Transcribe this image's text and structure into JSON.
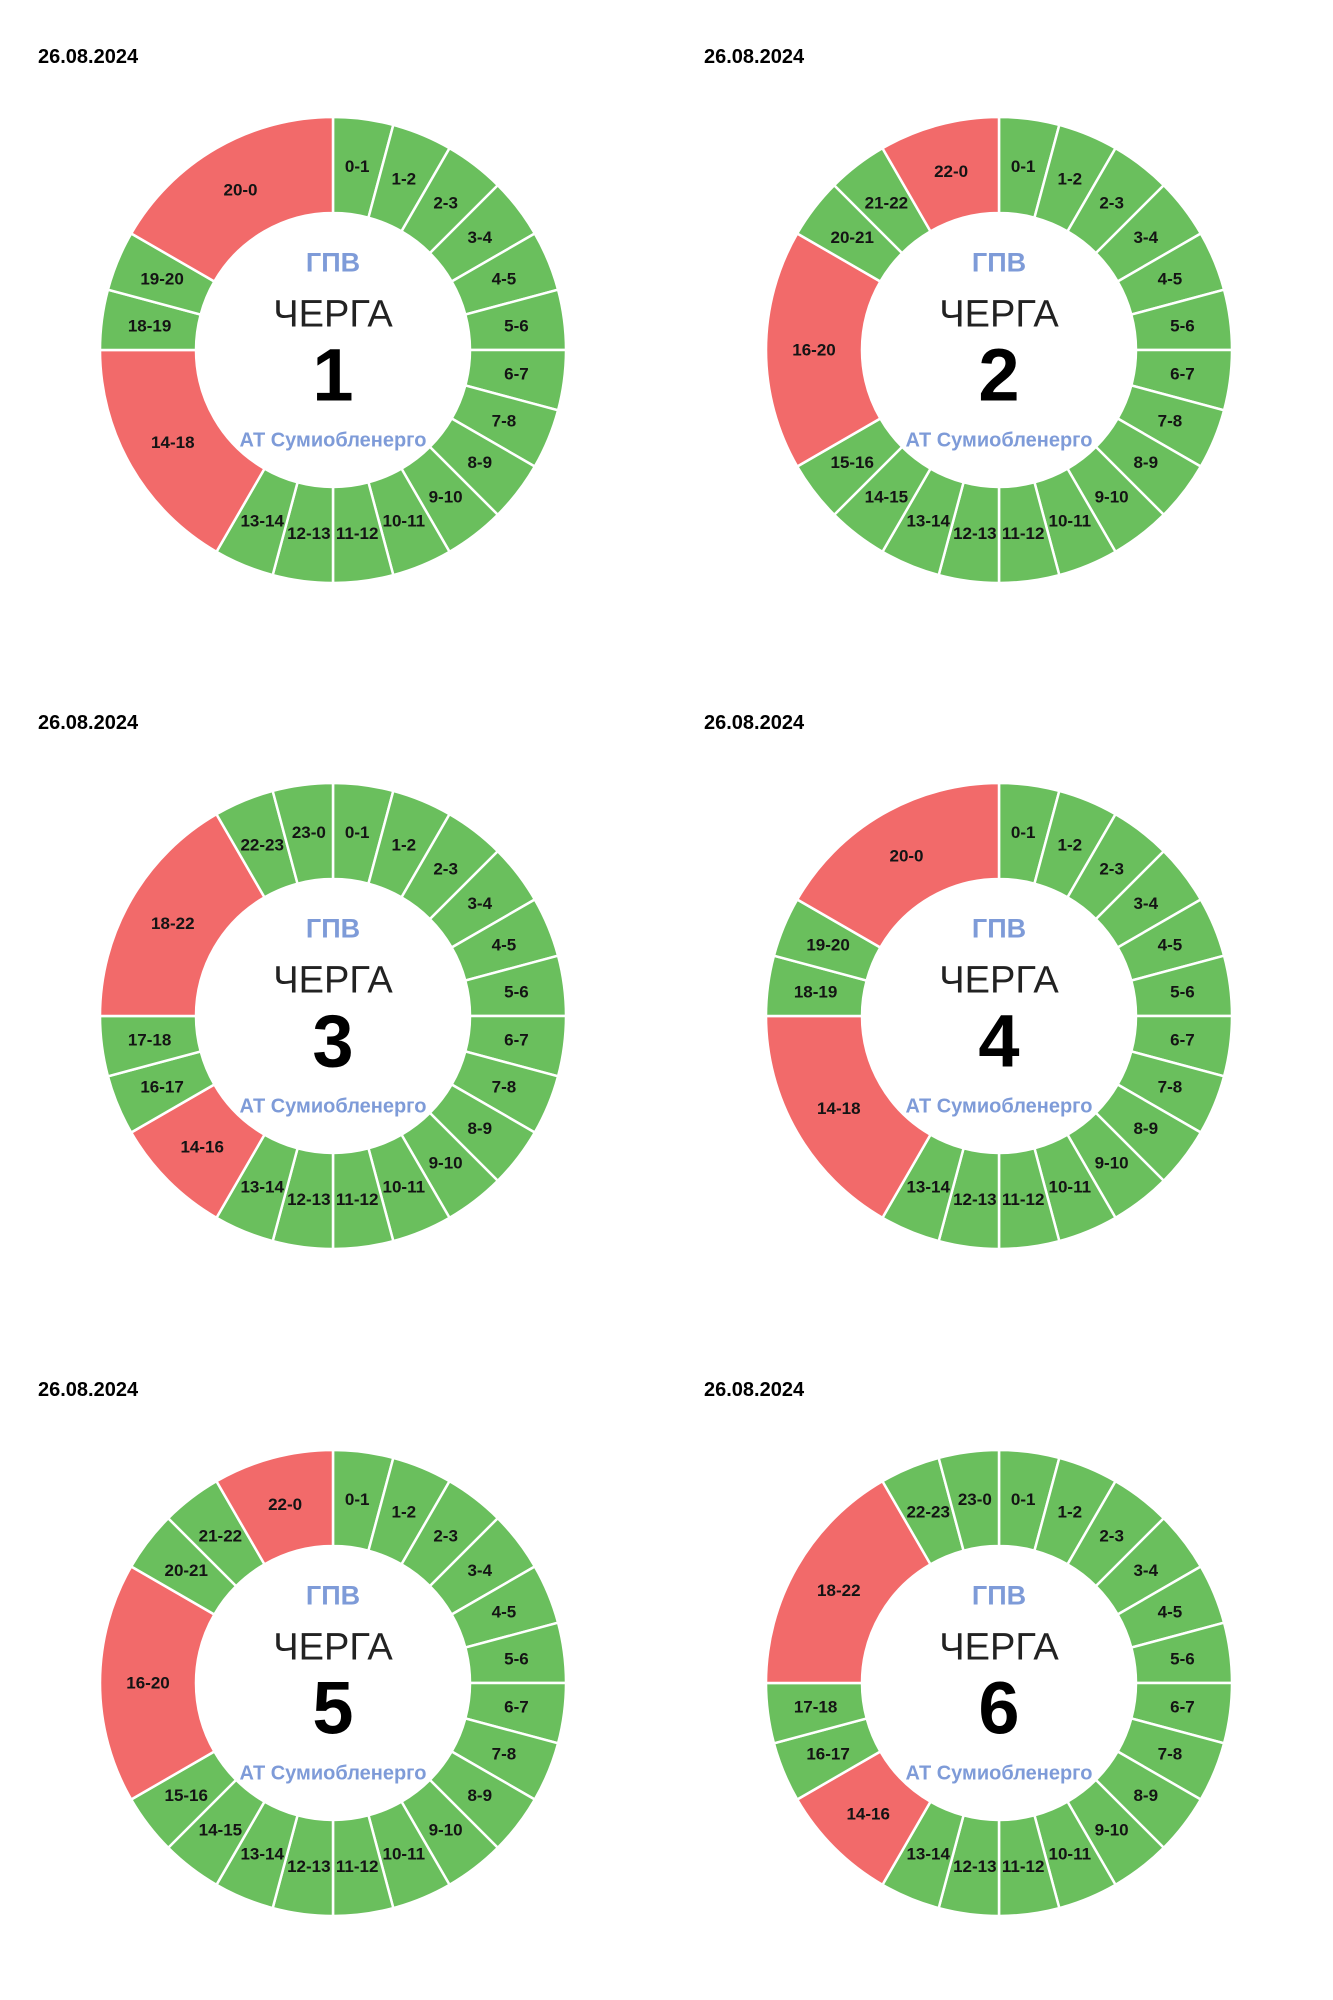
{
  "colors": {
    "on": "#6abf5d",
    "off": "#f26a6a",
    "stroke": "#ffffff",
    "segment_label": "#141414",
    "blue_text": "#7e9bd8"
  },
  "chart_data": [
    {
      "type": "pie",
      "date": "26.08.2024",
      "center": {
        "system": "ГПВ",
        "title": "ЧЕРГА",
        "number": "1",
        "company": "АТ Сумиобленерго"
      },
      "units": "hours of day, clockwise from midnight; on=green power available, off=red outage",
      "segments": [
        {
          "label": "0-1",
          "from": 0,
          "to": 1,
          "state": "on"
        },
        {
          "label": "1-2",
          "from": 1,
          "to": 2,
          "state": "on"
        },
        {
          "label": "2-3",
          "from": 2,
          "to": 3,
          "state": "on"
        },
        {
          "label": "3-4",
          "from": 3,
          "to": 4,
          "state": "on"
        },
        {
          "label": "4-5",
          "from": 4,
          "to": 5,
          "state": "on"
        },
        {
          "label": "5-6",
          "from": 5,
          "to": 6,
          "state": "on"
        },
        {
          "label": "6-7",
          "from": 6,
          "to": 7,
          "state": "on"
        },
        {
          "label": "7-8",
          "from": 7,
          "to": 8,
          "state": "on"
        },
        {
          "label": "8-9",
          "from": 8,
          "to": 9,
          "state": "on"
        },
        {
          "label": "9-10",
          "from": 9,
          "to": 10,
          "state": "on"
        },
        {
          "label": "10-11",
          "from": 10,
          "to": 11,
          "state": "on"
        },
        {
          "label": "11-12",
          "from": 11,
          "to": 12,
          "state": "on"
        },
        {
          "label": "12-13",
          "from": 12,
          "to": 13,
          "state": "on"
        },
        {
          "label": "13-14",
          "from": 13,
          "to": 14,
          "state": "on"
        },
        {
          "label": "14-18",
          "from": 14,
          "to": 18,
          "state": "off"
        },
        {
          "label": "18-19",
          "from": 18,
          "to": 19,
          "state": "on"
        },
        {
          "label": "19-20",
          "from": 19,
          "to": 20,
          "state": "on"
        },
        {
          "label": "20-0",
          "from": 20,
          "to": 24,
          "state": "off"
        }
      ]
    },
    {
      "type": "pie",
      "date": "26.08.2024",
      "center": {
        "system": "ГПВ",
        "title": "ЧЕРГА",
        "number": "2",
        "company": "АТ Сумиобленерго"
      },
      "units": "hours of day, clockwise from midnight; on=green power available, off=red outage",
      "segments": [
        {
          "label": "0-1",
          "from": 0,
          "to": 1,
          "state": "on"
        },
        {
          "label": "1-2",
          "from": 1,
          "to": 2,
          "state": "on"
        },
        {
          "label": "2-3",
          "from": 2,
          "to": 3,
          "state": "on"
        },
        {
          "label": "3-4",
          "from": 3,
          "to": 4,
          "state": "on"
        },
        {
          "label": "4-5",
          "from": 4,
          "to": 5,
          "state": "on"
        },
        {
          "label": "5-6",
          "from": 5,
          "to": 6,
          "state": "on"
        },
        {
          "label": "6-7",
          "from": 6,
          "to": 7,
          "state": "on"
        },
        {
          "label": "7-8",
          "from": 7,
          "to": 8,
          "state": "on"
        },
        {
          "label": "8-9",
          "from": 8,
          "to": 9,
          "state": "on"
        },
        {
          "label": "9-10",
          "from": 9,
          "to": 10,
          "state": "on"
        },
        {
          "label": "10-11",
          "from": 10,
          "to": 11,
          "state": "on"
        },
        {
          "label": "11-12",
          "from": 11,
          "to": 12,
          "state": "on"
        },
        {
          "label": "12-13",
          "from": 12,
          "to": 13,
          "state": "on"
        },
        {
          "label": "13-14",
          "from": 13,
          "to": 14,
          "state": "on"
        },
        {
          "label": "14-15",
          "from": 14,
          "to": 15,
          "state": "on"
        },
        {
          "label": "15-16",
          "from": 15,
          "to": 16,
          "state": "on"
        },
        {
          "label": "16-20",
          "from": 16,
          "to": 20,
          "state": "off"
        },
        {
          "label": "20-21",
          "from": 20,
          "to": 21,
          "state": "on"
        },
        {
          "label": "21-22",
          "from": 21,
          "to": 22,
          "state": "on"
        },
        {
          "label": "22-0",
          "from": 22,
          "to": 24,
          "state": "off"
        }
      ]
    },
    {
      "type": "pie",
      "date": "26.08.2024",
      "center": {
        "system": "ГПВ",
        "title": "ЧЕРГА",
        "number": "3",
        "company": "АТ Сумиобленерго"
      },
      "units": "hours of day, clockwise from midnight; on=green power available, off=red outage",
      "segments": [
        {
          "label": "0-1",
          "from": 0,
          "to": 1,
          "state": "on"
        },
        {
          "label": "1-2",
          "from": 1,
          "to": 2,
          "state": "on"
        },
        {
          "label": "2-3",
          "from": 2,
          "to": 3,
          "state": "on"
        },
        {
          "label": "3-4",
          "from": 3,
          "to": 4,
          "state": "on"
        },
        {
          "label": "4-5",
          "from": 4,
          "to": 5,
          "state": "on"
        },
        {
          "label": "5-6",
          "from": 5,
          "to": 6,
          "state": "on"
        },
        {
          "label": "6-7",
          "from": 6,
          "to": 7,
          "state": "on"
        },
        {
          "label": "7-8",
          "from": 7,
          "to": 8,
          "state": "on"
        },
        {
          "label": "8-9",
          "from": 8,
          "to": 9,
          "state": "on"
        },
        {
          "label": "9-10",
          "from": 9,
          "to": 10,
          "state": "on"
        },
        {
          "label": "10-11",
          "from": 10,
          "to": 11,
          "state": "on"
        },
        {
          "label": "11-12",
          "from": 11,
          "to": 12,
          "state": "on"
        },
        {
          "label": "12-13",
          "from": 12,
          "to": 13,
          "state": "on"
        },
        {
          "label": "13-14",
          "from": 13,
          "to": 14,
          "state": "on"
        },
        {
          "label": "14-16",
          "from": 14,
          "to": 16,
          "state": "off"
        },
        {
          "label": "16-17",
          "from": 16,
          "to": 17,
          "state": "on"
        },
        {
          "label": "17-18",
          "from": 17,
          "to": 18,
          "state": "on"
        },
        {
          "label": "18-22",
          "from": 18,
          "to": 22,
          "state": "off"
        },
        {
          "label": "22-23",
          "from": 22,
          "to": 23,
          "state": "on"
        },
        {
          "label": "23-0",
          "from": 23,
          "to": 24,
          "state": "on"
        }
      ]
    },
    {
      "type": "pie",
      "date": "26.08.2024",
      "center": {
        "system": "ГПВ",
        "title": "ЧЕРГА",
        "number": "4",
        "company": "АТ Сумиобленерго"
      },
      "units": "hours of day, clockwise from midnight; on=green power available, off=red outage",
      "segments": [
        {
          "label": "0-1",
          "from": 0,
          "to": 1,
          "state": "on"
        },
        {
          "label": "1-2",
          "from": 1,
          "to": 2,
          "state": "on"
        },
        {
          "label": "2-3",
          "from": 2,
          "to": 3,
          "state": "on"
        },
        {
          "label": "3-4",
          "from": 3,
          "to": 4,
          "state": "on"
        },
        {
          "label": "4-5",
          "from": 4,
          "to": 5,
          "state": "on"
        },
        {
          "label": "5-6",
          "from": 5,
          "to": 6,
          "state": "on"
        },
        {
          "label": "6-7",
          "from": 6,
          "to": 7,
          "state": "on"
        },
        {
          "label": "7-8",
          "from": 7,
          "to": 8,
          "state": "on"
        },
        {
          "label": "8-9",
          "from": 8,
          "to": 9,
          "state": "on"
        },
        {
          "label": "9-10",
          "from": 9,
          "to": 10,
          "state": "on"
        },
        {
          "label": "10-11",
          "from": 10,
          "to": 11,
          "state": "on"
        },
        {
          "label": "11-12",
          "from": 11,
          "to": 12,
          "state": "on"
        },
        {
          "label": "12-13",
          "from": 12,
          "to": 13,
          "state": "on"
        },
        {
          "label": "13-14",
          "from": 13,
          "to": 14,
          "state": "on"
        },
        {
          "label": "14-18",
          "from": 14,
          "to": 18,
          "state": "off"
        },
        {
          "label": "18-19",
          "from": 18,
          "to": 19,
          "state": "on"
        },
        {
          "label": "19-20",
          "from": 19,
          "to": 20,
          "state": "on"
        },
        {
          "label": "20-0",
          "from": 20,
          "to": 24,
          "state": "off"
        }
      ]
    },
    {
      "type": "pie",
      "date": "26.08.2024",
      "center": {
        "system": "ГПВ",
        "title": "ЧЕРГА",
        "number": "5",
        "company": "АТ Сумиобленерго"
      },
      "units": "hours of day, clockwise from midnight; on=green power available, off=red outage",
      "segments": [
        {
          "label": "0-1",
          "from": 0,
          "to": 1,
          "state": "on"
        },
        {
          "label": "1-2",
          "from": 1,
          "to": 2,
          "state": "on"
        },
        {
          "label": "2-3",
          "from": 2,
          "to": 3,
          "state": "on"
        },
        {
          "label": "3-4",
          "from": 3,
          "to": 4,
          "state": "on"
        },
        {
          "label": "4-5",
          "from": 4,
          "to": 5,
          "state": "on"
        },
        {
          "label": "5-6",
          "from": 5,
          "to": 6,
          "state": "on"
        },
        {
          "label": "6-7",
          "from": 6,
          "to": 7,
          "state": "on"
        },
        {
          "label": "7-8",
          "from": 7,
          "to": 8,
          "state": "on"
        },
        {
          "label": "8-9",
          "from": 8,
          "to": 9,
          "state": "on"
        },
        {
          "label": "9-10",
          "from": 9,
          "to": 10,
          "state": "on"
        },
        {
          "label": "10-11",
          "from": 10,
          "to": 11,
          "state": "on"
        },
        {
          "label": "11-12",
          "from": 11,
          "to": 12,
          "state": "on"
        },
        {
          "label": "12-13",
          "from": 12,
          "to": 13,
          "state": "on"
        },
        {
          "label": "13-14",
          "from": 13,
          "to": 14,
          "state": "on"
        },
        {
          "label": "14-15",
          "from": 14,
          "to": 15,
          "state": "on"
        },
        {
          "label": "15-16",
          "from": 15,
          "to": 16,
          "state": "on"
        },
        {
          "label": "16-20",
          "from": 16,
          "to": 20,
          "state": "off"
        },
        {
          "label": "20-21",
          "from": 20,
          "to": 21,
          "state": "on"
        },
        {
          "label": "21-22",
          "from": 21,
          "to": 22,
          "state": "on"
        },
        {
          "label": "22-0",
          "from": 22,
          "to": 24,
          "state": "off"
        }
      ]
    },
    {
      "type": "pie",
      "date": "26.08.2024",
      "center": {
        "system": "ГПВ",
        "title": "ЧЕРГА",
        "number": "6",
        "company": "АТ Сумиобленерго"
      },
      "units": "hours of day, clockwise from midnight; on=green power available, off=red outage",
      "segments": [
        {
          "label": "0-1",
          "from": 0,
          "to": 1,
          "state": "on"
        },
        {
          "label": "1-2",
          "from": 1,
          "to": 2,
          "state": "on"
        },
        {
          "label": "2-3",
          "from": 2,
          "to": 3,
          "state": "on"
        },
        {
          "label": "3-4",
          "from": 3,
          "to": 4,
          "state": "on"
        },
        {
          "label": "4-5",
          "from": 4,
          "to": 5,
          "state": "on"
        },
        {
          "label": "5-6",
          "from": 5,
          "to": 6,
          "state": "on"
        },
        {
          "label": "6-7",
          "from": 6,
          "to": 7,
          "state": "on"
        },
        {
          "label": "7-8",
          "from": 7,
          "to": 8,
          "state": "on"
        },
        {
          "label": "8-9",
          "from": 8,
          "to": 9,
          "state": "on"
        },
        {
          "label": "9-10",
          "from": 9,
          "to": 10,
          "state": "on"
        },
        {
          "label": "10-11",
          "from": 10,
          "to": 11,
          "state": "on"
        },
        {
          "label": "11-12",
          "from": 11,
          "to": 12,
          "state": "on"
        },
        {
          "label": "12-13",
          "from": 12,
          "to": 13,
          "state": "on"
        },
        {
          "label": "13-14",
          "from": 13,
          "to": 14,
          "state": "on"
        },
        {
          "label": "14-16",
          "from": 14,
          "to": 16,
          "state": "off"
        },
        {
          "label": "16-17",
          "from": 16,
          "to": 17,
          "state": "on"
        },
        {
          "label": "17-18",
          "from": 17,
          "to": 18,
          "state": "on"
        },
        {
          "label": "18-22",
          "from": 18,
          "to": 22,
          "state": "off"
        },
        {
          "label": "22-23",
          "from": 22,
          "to": 23,
          "state": "on"
        },
        {
          "label": "23-0",
          "from": 23,
          "to": 24,
          "state": "on"
        }
      ]
    }
  ]
}
